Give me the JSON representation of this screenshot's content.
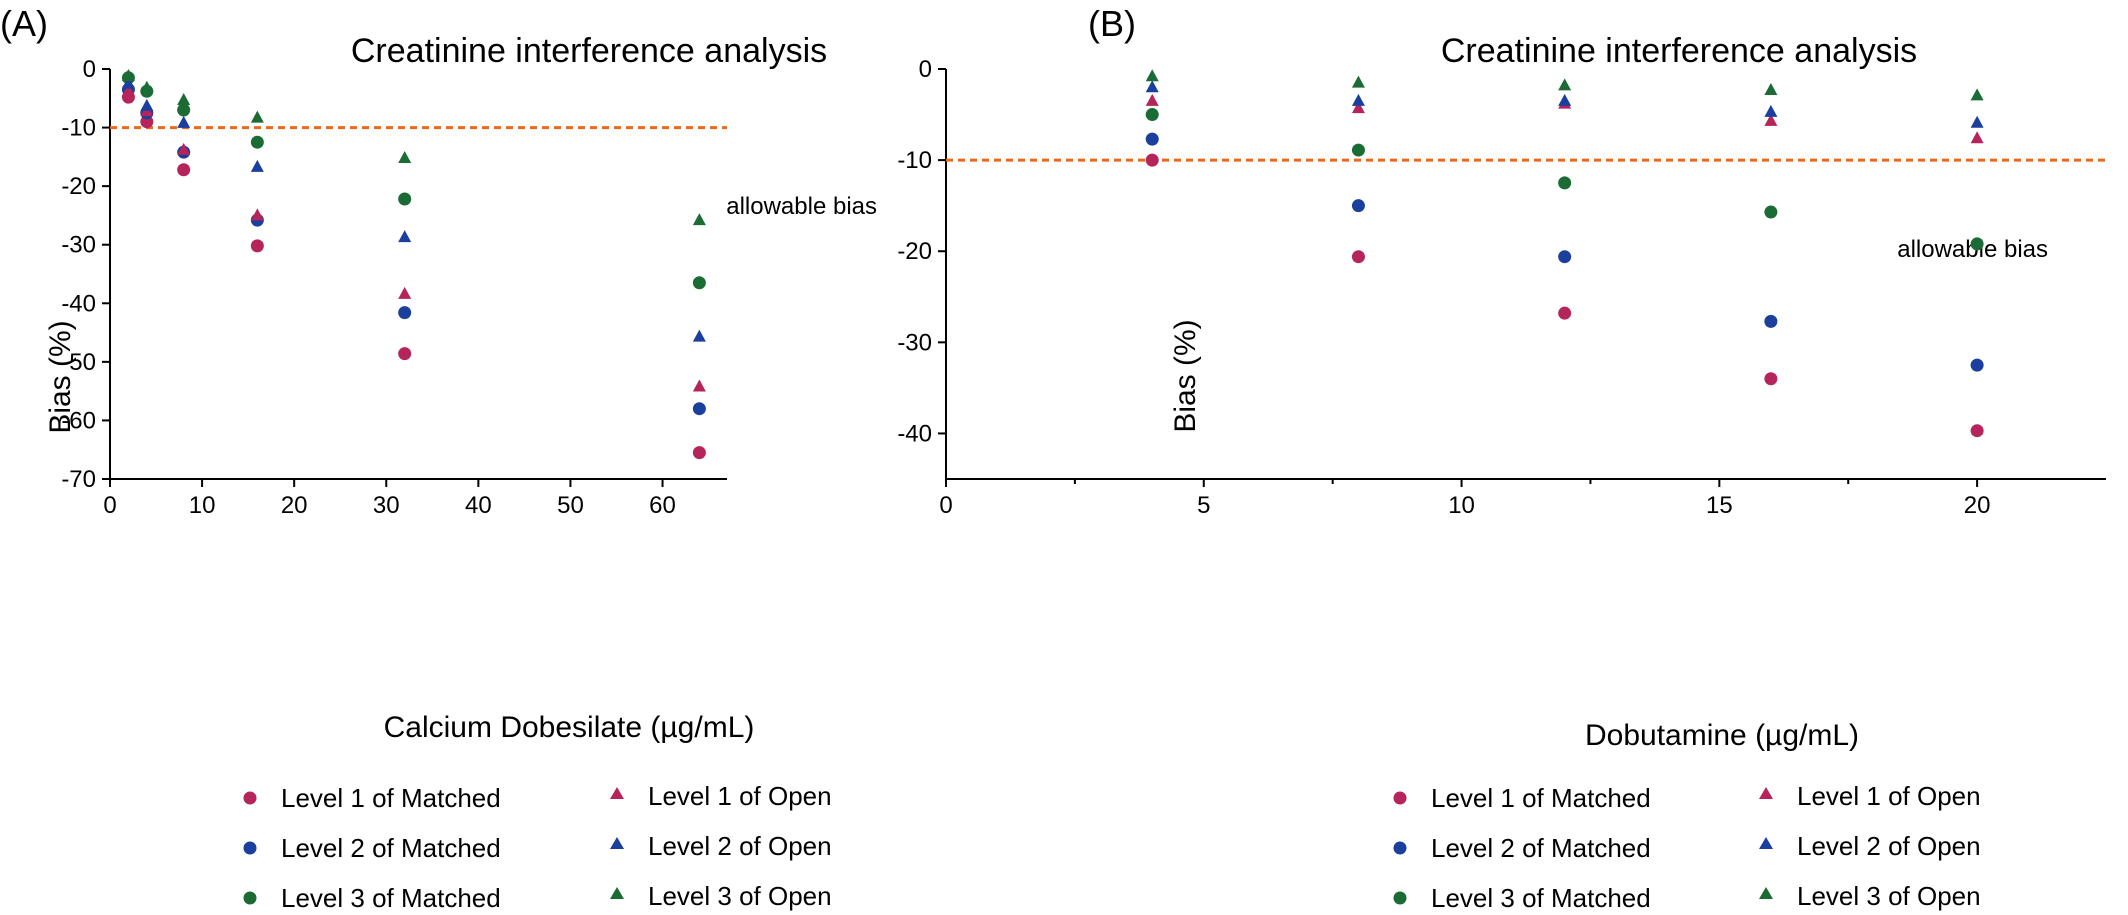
{
  "colors": {
    "level1": "#b5245a",
    "level2": "#1a3f9c",
    "level3": "#1b6b35",
    "threshold": "#e86a1e",
    "axis": "#000000"
  },
  "legend": {
    "level1_matched": "Level 1 of Matched",
    "level2_matched": "Level 2 of Matched",
    "level3_matched": "Level 3 of Matched",
    "level1_open": "Level 1 of Open",
    "level2_open": "Level 2 of Open",
    "level3_open": "Level 3 of Open"
  },
  "chart_data": [
    {
      "panel": "(A)",
      "type": "scatter",
      "title": "Creatinine interference analysis",
      "xlabel": "Calcium Dobesilate (µg/mL)",
      "ylabel": "Bias (%)",
      "xlim": [
        0,
        67
      ],
      "ylim": [
        -70,
        0
      ],
      "xticks": [
        0,
        10,
        20,
        30,
        40,
        50,
        60
      ],
      "yticks": [
        0,
        -10,
        -20,
        -30,
        -40,
        -50,
        -60,
        -70
      ],
      "threshold": {
        "y": -10,
        "label": "allowable bias"
      },
      "x": [
        2,
        4,
        8,
        16,
        32,
        64
      ],
      "series": [
        {
          "name": "Level 1 of Matched",
          "marker": "circle",
          "color": "level1",
          "values": [
            -4.8,
            -9.0,
            -17.2,
            -30.2,
            -48.6,
            -65.5
          ]
        },
        {
          "name": "Level 2 of Matched",
          "marker": "circle",
          "color": "level2",
          "values": [
            -3.5,
            -7.5,
            -14.2,
            -25.8,
            -41.6,
            -58.0
          ]
        },
        {
          "name": "Level 3 of Matched",
          "marker": "circle",
          "color": "level3",
          "values": [
            -1.5,
            -3.8,
            -7.0,
            -12.5,
            -22.2,
            -36.5
          ]
        },
        {
          "name": "Level 1 of Open",
          "marker": "triangle",
          "color": "level1",
          "values": [
            -3.8,
            -7.2,
            -13.8,
            -25.0,
            -38.4,
            -54.2
          ]
        },
        {
          "name": "Level 2 of Open",
          "marker": "triangle",
          "color": "level2",
          "values": [
            -2.5,
            -6.3,
            -9.2,
            -16.7,
            -28.7,
            -45.7
          ]
        },
        {
          "name": "Level 3 of Open",
          "marker": "triangle",
          "color": "level3",
          "values": [
            -1.2,
            -3.2,
            -5.3,
            -8.3,
            -15.2,
            -25.8
          ]
        }
      ]
    },
    {
      "panel": "(B)",
      "type": "scatter",
      "title": "Creatinine interference analysis",
      "xlabel": "Dobutamine (µg/mL)",
      "ylabel": "Bias (%)",
      "xlim": [
        0,
        22.5
      ],
      "ylim": [
        -45,
        0
      ],
      "xticks": [
        0,
        5,
        10,
        15,
        20
      ],
      "yticks": [
        0,
        -10,
        -20,
        -30,
        -40
      ],
      "threshold": {
        "y": -10,
        "label": "allowable bias"
      },
      "x": [
        4,
        8,
        12,
        16,
        20
      ],
      "series": [
        {
          "name": "Level 1 of Matched",
          "marker": "circle",
          "color": "level1",
          "values": [
            -10.0,
            -20.6,
            -26.8,
            -34.0,
            -39.7
          ]
        },
        {
          "name": "Level 2 of Matched",
          "marker": "circle",
          "color": "level2",
          "values": [
            -7.7,
            -15.0,
            -20.6,
            -27.7,
            -32.5
          ]
        },
        {
          "name": "Level 3 of Matched",
          "marker": "circle",
          "color": "level3",
          "values": [
            -5.0,
            -8.9,
            -12.5,
            -15.7,
            -19.2
          ]
        },
        {
          "name": "Level 1 of Open",
          "marker": "triangle",
          "color": "level1",
          "values": [
            -3.5,
            -4.3,
            -3.8,
            -5.7,
            -7.6
          ]
        },
        {
          "name": "Level 2 of Open",
          "marker": "triangle",
          "color": "level2",
          "values": [
            -2.0,
            -3.5,
            -3.5,
            -4.7,
            -5.9
          ]
        },
        {
          "name": "Level 3 of Open",
          "marker": "triangle",
          "color": "level3",
          "values": [
            -0.8,
            -1.5,
            -1.8,
            -2.3,
            -2.9
          ]
        }
      ]
    }
  ]
}
